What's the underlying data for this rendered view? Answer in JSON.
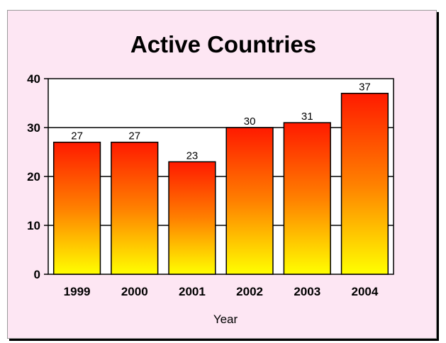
{
  "chart_data": {
    "type": "bar",
    "title": "Active Countries",
    "xlabel": "Year",
    "ylabel": "",
    "categories": [
      "1999",
      "2000",
      "2001",
      "2002",
      "2003",
      "2004"
    ],
    "values": [
      27,
      27,
      23,
      30,
      31,
      37
    ],
    "data_labels": [
      "27",
      "27",
      "23",
      "30",
      "31",
      "37"
    ],
    "ylim": [
      0,
      40
    ],
    "yticks": [
      "0",
      "10",
      "20",
      "30",
      "40"
    ],
    "grid": true,
    "legend": "none",
    "colors": {
      "background": "#fde6f3",
      "plot_area": "#ffffff",
      "bar_top": "#ff1a00",
      "bar_mid": "#ff8000",
      "bar_bottom": "#ffff00",
      "bar_outline": "#000000"
    }
  }
}
